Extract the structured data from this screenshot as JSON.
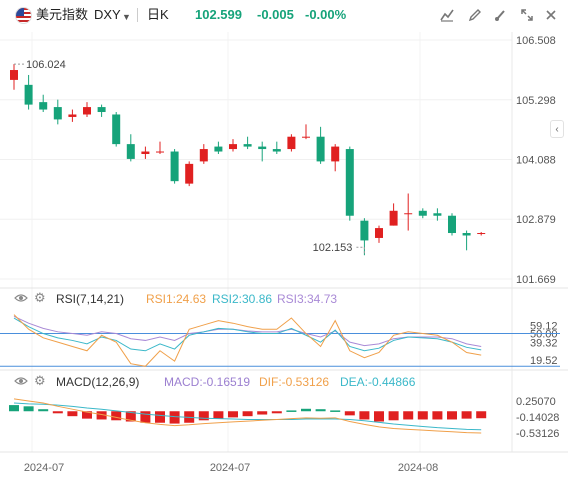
{
  "header": {
    "symbol_name": "美元指数",
    "symbol_code": "DXY",
    "period": "日K",
    "last": "102.599",
    "change": "-0.005",
    "change_pct": "-0.00%",
    "up_color": "#e02020",
    "down_color": "#16a37a"
  },
  "rsi": {
    "title": "RSI(7,14,21)",
    "rsi1": "RSI1:24.63",
    "rsi2": "RSI2:30.86",
    "rsi3": "RSI3:34.73",
    "colors": {
      "rsi1": "#f0a04a",
      "rsi2": "#3bb8c9",
      "rsi3": "#a98ad6"
    }
  },
  "macd": {
    "title": "MACD(12,26,9)",
    "macd_val": "MACD:-0.16519",
    "dif_val": "DIF:-0.53126",
    "dea_val": "DEA:-0.44866",
    "colors": {
      "macd": "#9b7fd0",
      "dif": "#f0a04a",
      "dea": "#3bb8c9"
    }
  },
  "chart_data": {
    "type": "candlestick",
    "y_axis_ticks": [
      "106.508",
      "105.298",
      "104.088",
      "102.879",
      "101.669"
    ],
    "ylim": [
      101.669,
      106.508
    ],
    "max_label": "106.024",
    "min_label": "102.153",
    "x_labels": [
      "2024-07",
      "2024-07",
      "2024-08"
    ],
    "candles": [
      {
        "o": 105.7,
        "h": 106.02,
        "l": 105.5,
        "c": 105.9
      },
      {
        "o": 105.6,
        "h": 105.8,
        "l": 105.1,
        "c": 105.2
      },
      {
        "o": 105.25,
        "h": 105.4,
        "l": 105.05,
        "c": 105.1
      },
      {
        "o": 105.15,
        "h": 105.3,
        "l": 104.8,
        "c": 104.9
      },
      {
        "o": 104.95,
        "h": 105.1,
        "l": 104.85,
        "c": 105.0
      },
      {
        "o": 105.0,
        "h": 105.25,
        "l": 104.95,
        "c": 105.15
      },
      {
        "o": 105.15,
        "h": 105.2,
        "l": 104.95,
        "c": 105.05
      },
      {
        "o": 105.0,
        "h": 105.05,
        "l": 104.35,
        "c": 104.4
      },
      {
        "o": 104.4,
        "h": 104.6,
        "l": 104.05,
        "c": 104.1
      },
      {
        "o": 104.2,
        "h": 104.35,
        "l": 104.1,
        "c": 104.25
      },
      {
        "o": 104.25,
        "h": 104.45,
        "l": 104.2,
        "c": 104.25
      },
      {
        "o": 104.25,
        "h": 104.3,
        "l": 103.6,
        "c": 103.65
      },
      {
        "o": 103.6,
        "h": 104.05,
        "l": 103.55,
        "c": 104.0
      },
      {
        "o": 104.05,
        "h": 104.4,
        "l": 104.0,
        "c": 104.3
      },
      {
        "o": 104.35,
        "h": 104.45,
        "l": 104.2,
        "c": 104.25
      },
      {
        "o": 104.3,
        "h": 104.5,
        "l": 104.25,
        "c": 104.4
      },
      {
        "o": 104.4,
        "h": 104.55,
        "l": 104.3,
        "c": 104.35
      },
      {
        "o": 104.35,
        "h": 104.45,
        "l": 104.05,
        "c": 104.3
      },
      {
        "o": 104.3,
        "h": 104.45,
        "l": 104.2,
        "c": 104.25
      },
      {
        "o": 104.3,
        "h": 104.6,
        "l": 104.25,
        "c": 104.55
      },
      {
        "o": 104.55,
        "h": 104.8,
        "l": 104.5,
        "c": 104.55
      },
      {
        "o": 104.55,
        "h": 104.75,
        "l": 104.0,
        "c": 104.05
      },
      {
        "o": 104.05,
        "h": 104.4,
        "l": 103.85,
        "c": 104.35
      },
      {
        "o": 104.3,
        "h": 104.35,
        "l": 102.85,
        "c": 102.95
      },
      {
        "o": 102.85,
        "h": 102.9,
        "l": 102.15,
        "c": 102.45
      },
      {
        "o": 102.5,
        "h": 102.75,
        "l": 102.4,
        "c": 102.7
      },
      {
        "o": 102.75,
        "h": 103.2,
        "l": 102.75,
        "c": 103.05
      },
      {
        "o": 103.0,
        "h": 103.4,
        "l": 102.65,
        "c": 103.0
      },
      {
        "o": 103.05,
        "h": 103.1,
        "l": 102.9,
        "c": 102.95
      },
      {
        "o": 103.0,
        "h": 103.1,
        "l": 102.85,
        "c": 102.95
      },
      {
        "o": 102.95,
        "h": 103.0,
        "l": 102.55,
        "c": 102.6
      },
      {
        "o": 102.6,
        "h": 102.65,
        "l": 102.25,
        "c": 102.55
      },
      {
        "o": 102.6,
        "h": 102.62,
        "l": 102.55,
        "c": 102.6
      }
    ],
    "rsi_ticks": [
      "59.12",
      "50.00",
      "39.32",
      "19.52"
    ],
    "rsi_ylim": [
      10,
      75
    ],
    "rsi_bands": [
      50,
      12
    ],
    "rsi1": [
      72,
      55,
      45,
      40,
      35,
      30,
      48,
      40,
      15,
      12,
      30,
      18,
      55,
      60,
      65,
      62,
      58,
      55,
      55,
      68,
      50,
      35,
      65,
      30,
      22,
      28,
      48,
      52,
      50,
      48,
      40,
      28,
      25
    ],
    "rsi2": [
      68,
      58,
      50,
      45,
      42,
      38,
      46,
      42,
      32,
      30,
      38,
      32,
      48,
      52,
      56,
      55,
      52,
      50,
      50,
      56,
      48,
      40,
      54,
      35,
      30,
      33,
      42,
      46,
      45,
      44,
      40,
      34,
      31
    ],
    "rsi3": [
      70,
      62,
      56,
      52,
      50,
      48,
      52,
      50,
      44,
      42,
      46,
      42,
      50,
      52,
      55,
      55,
      53,
      52,
      52,
      55,
      50,
      46,
      53,
      40,
      36,
      38,
      44,
      46,
      46,
      46,
      44,
      38,
      35
    ],
    "macd_ticks": [
      "0.25070",
      "-0.14028",
      "-0.53126"
    ],
    "macd_ylim": [
      -0.7,
      0.42
    ],
    "macd_hist": [
      0.15,
      0.12,
      0.05,
      -0.05,
      -0.12,
      -0.18,
      -0.2,
      -0.22,
      -0.25,
      -0.28,
      -0.28,
      -0.3,
      -0.28,
      -0.22,
      -0.18,
      -0.15,
      -0.12,
      -0.08,
      -0.05,
      0.02,
      0.06,
      0.05,
      0.02,
      -0.1,
      -0.2,
      -0.25,
      -0.22,
      -0.2,
      -0.2,
      -0.2,
      -0.2,
      -0.18,
      -0.17
    ],
    "dif": [
      0.3,
      0.25,
      0.2,
      0.12,
      0.05,
      -0.02,
      -0.08,
      -0.15,
      -0.22,
      -0.28,
      -0.32,
      -0.35,
      -0.33,
      -0.3,
      -0.28,
      -0.26,
      -0.24,
      -0.22,
      -0.2,
      -0.18,
      -0.16,
      -0.17,
      -0.16,
      -0.25,
      -0.32,
      -0.38,
      -0.42,
      -0.44,
      -0.46,
      -0.48,
      -0.5,
      -0.52,
      -0.53
    ],
    "dea": [
      0.2,
      0.18,
      0.17,
      0.15,
      0.12,
      0.08,
      0.05,
      0.01,
      -0.03,
      -0.07,
      -0.1,
      -0.13,
      -0.15,
      -0.17,
      -0.18,
      -0.19,
      -0.2,
      -0.2,
      -0.2,
      -0.2,
      -0.19,
      -0.19,
      -0.19,
      -0.2,
      -0.23,
      -0.27,
      -0.31,
      -0.34,
      -0.37,
      -0.4,
      -0.42,
      -0.44,
      -0.45
    ]
  }
}
